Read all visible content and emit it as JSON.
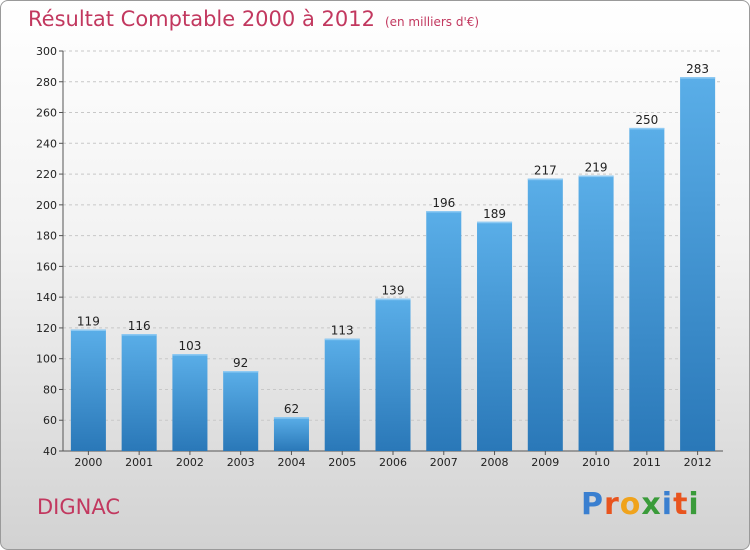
{
  "header": {
    "title": "Résultat Comptable 2000 à 2012",
    "unit": "(en milliers d'€)"
  },
  "footer": {
    "commune": "DIGNAC",
    "logo_letters": [
      "P",
      "r",
      "o",
      "x",
      "i",
      "t",
      "i"
    ],
    "logo_colors": [
      "#3a7fd0",
      "#e8541e",
      "#f0a31c",
      "#3a9b3a",
      "#3a7fd0",
      "#e8541e",
      "#3a9b3a"
    ]
  },
  "colors": {
    "bar_top": "#5aaee8",
    "bar_bottom": "#2a78b8",
    "title": "#c2385f"
  },
  "chart_data": {
    "type": "bar",
    "title": "Résultat Comptable 2000 à 2012",
    "subtitle": "(en milliers d'€)",
    "categories": [
      "2000",
      "2001",
      "2002",
      "2003",
      "2004",
      "2005",
      "2006",
      "2007",
      "2008",
      "2009",
      "2010",
      "2011",
      "2012"
    ],
    "values": [
      119,
      116,
      103,
      92,
      62,
      113,
      139,
      196,
      189,
      217,
      219,
      250,
      283
    ],
    "ylim": [
      40,
      300
    ],
    "yticks": [
      40,
      60,
      80,
      100,
      120,
      140,
      160,
      180,
      200,
      220,
      240,
      260,
      280,
      300
    ],
    "grid": true,
    "legend": "none"
  }
}
